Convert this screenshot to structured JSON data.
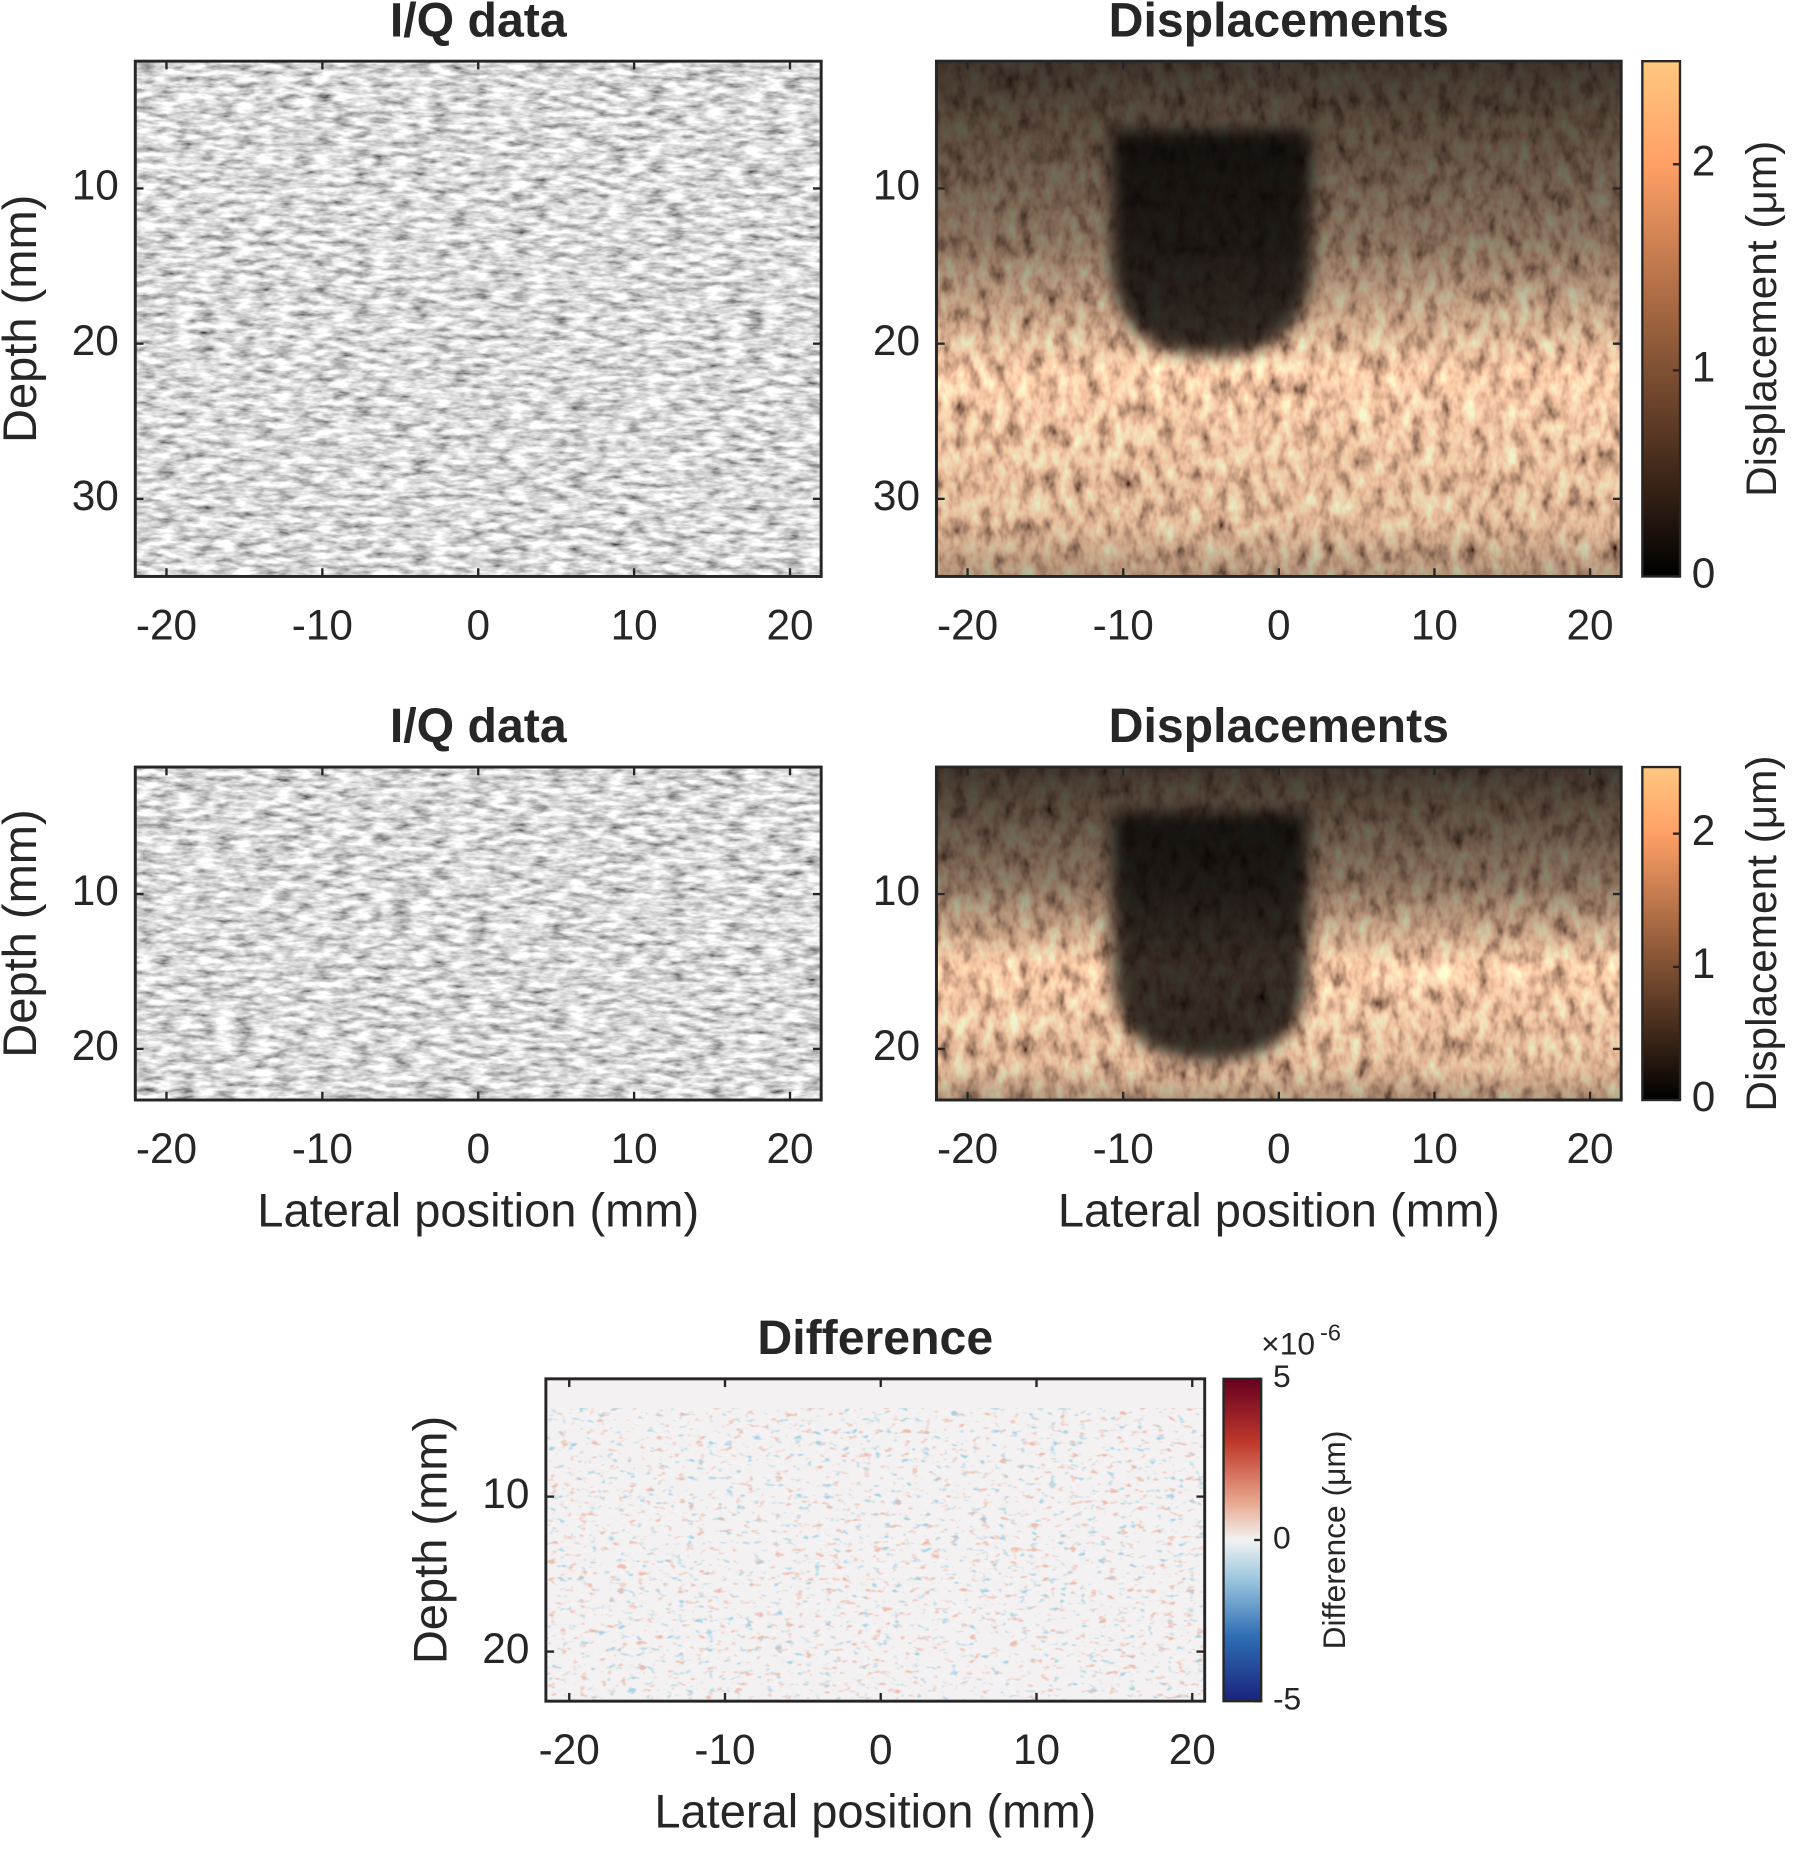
{
  "chart_data": [
    {
      "type": "image",
      "title": "I/Q data",
      "ylabel": "Depth (mm)",
      "colormap": "gray",
      "xlim": [
        -22,
        22
      ],
      "ylim": [
        35,
        1.8
      ],
      "xticks": [
        -20,
        -10,
        0,
        10,
        20
      ],
      "yticks": [
        10,
        20,
        30
      ]
    },
    {
      "type": "image",
      "title": "Displacements",
      "colormap": "copper",
      "xlim": [
        -22,
        22
      ],
      "ylim": [
        35,
        1.8
      ],
      "xticks": [
        -20,
        -10,
        0,
        10,
        20
      ],
      "yticks": [
        10,
        20,
        30
      ],
      "colorbar": {
        "label": "Displacement (μm)",
        "clim": [
          0,
          2.5
        ],
        "ticks": [
          0,
          1,
          2
        ]
      }
    },
    {
      "type": "image",
      "title": "I/Q data",
      "ylabel": "Depth (mm)",
      "xlabel": "Lateral position (mm)",
      "colormap": "gray",
      "xlim": [
        -22,
        22
      ],
      "ylim": [
        23.3,
        1.8
      ],
      "xticks": [
        -20,
        -10,
        0,
        10,
        20
      ],
      "yticks": [
        10,
        20
      ]
    },
    {
      "type": "image",
      "title": "Displacements",
      "xlabel": "Lateral position (mm)",
      "colormap": "copper",
      "xlim": [
        -22,
        22
      ],
      "ylim": [
        23.3,
        1.8
      ],
      "xticks": [
        -20,
        -10,
        0,
        10,
        20
      ],
      "yticks": [
        10,
        20
      ],
      "colorbar": {
        "label": "Displacement (μm)",
        "clim": [
          0,
          2.5
        ],
        "ticks": [
          0,
          1,
          2
        ]
      }
    },
    {
      "type": "image",
      "title": "Difference",
      "ylabel": "Depth (mm)",
      "xlabel": "Lateral position (mm)",
      "colormap": "diverging",
      "xlim": [
        -21.5,
        20.8
      ],
      "ylim": [
        23.2,
        2.4
      ],
      "xticks": [
        -20,
        -10,
        0,
        10,
        20
      ],
      "yticks": [
        10,
        20
      ],
      "colorbar": {
        "label": "Difference (μm)",
        "clim": [
          -5,
          5
        ],
        "ticks": [
          -5,
          0,
          5
        ],
        "multiplier": "×10",
        "exponent": "-6"
      }
    }
  ]
}
